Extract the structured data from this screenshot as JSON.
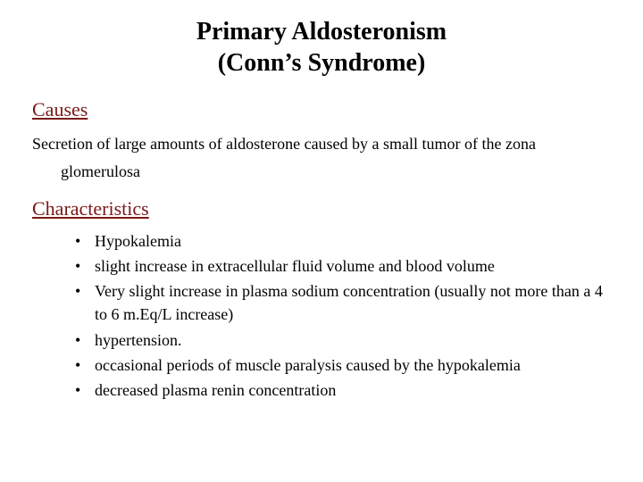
{
  "title_line1": "Primary Aldosteronism",
  "title_line2": "(Conn’s Syndrome)",
  "causes_heading": "Causes",
  "causes_text_line1": "Secretion of large amounts of aldosterone caused by a small tumor of the zona",
  "causes_text_line2": "glomerulosa",
  "characteristics_heading": "Characteristics",
  "characteristics": [
    "Hypokalemia",
    "slight increase in extracellular fluid volume and blood volume",
    "Very slight increase in plasma sodium concentration (usually not more than a 4 to 6 m.Eq/L increase)",
    " hypertension.",
    "occasional periods of muscle paralysis caused by the hypokalemia",
    "decreased plasma renin concentration"
  ],
  "colors": {
    "heading_color": "#7a1818",
    "text_color": "#000000",
    "background": "#ffffff"
  },
  "typography": {
    "title_fontsize": 28,
    "heading_fontsize": 22,
    "body_fontsize": 18,
    "font_family": "Times New Roman"
  }
}
